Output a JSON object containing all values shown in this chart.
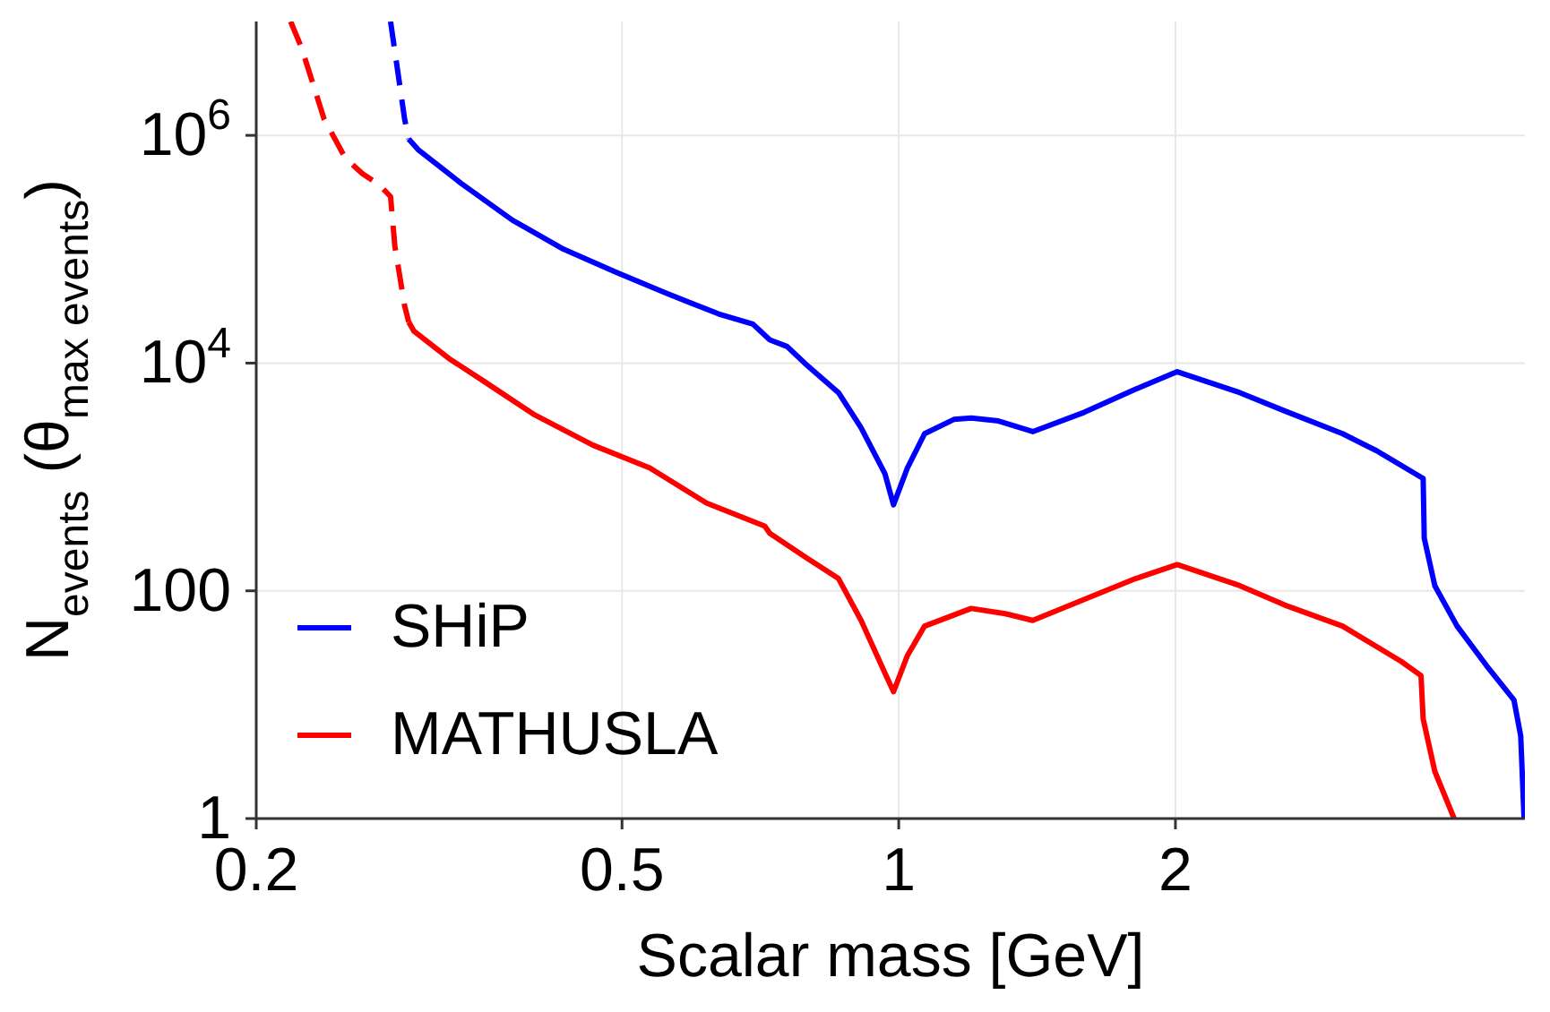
{
  "chart_data": {
    "type": "line",
    "xlabel": "Scalar mass [GeV]",
    "ylabel": "N$_{events}$ (θ$_{max events}$)",
    "log": "xy",
    "xlim": [
      0.2,
      4.8
    ],
    "xticks": [
      0.2,
      0.5,
      1,
      2
    ],
    "ylim": [
      1,
      10000000
    ],
    "yticks": [
      1,
      100,
      {
        "value": 10000,
        "label": "10$^{4}$"
      },
      {
        "value": 1000000,
        "label": "10$^{6}$"
      }
    ],
    "grid": true,
    "legend": "bottom left",
    "marker": "none",
    "series": [
      {
        "color": "#0000ff",
        "line_style": "dashed",
        "x": [
          0.28,
          0.29,
          0.293
        ],
        "values": [
          10000000,
          1400000,
          930000
        ]
      },
      {
        "name": "SHiP",
        "color": "#0000ff",
        "line_style": "solid",
        "x": [
          0.293,
          0.3,
          0.334,
          0.38,
          0.432,
          0.492,
          0.559,
          0.637,
          0.694,
          0.724,
          0.756,
          0.79,
          0.86,
          0.91,
          0.966,
          0.987,
          1.022,
          1.067,
          1.148,
          1.199,
          1.284,
          1.399,
          1.592,
          1.81,
          2.009,
          2.35,
          2.63,
          3.04,
          3.31,
          3.72,
          3.73,
          3.83,
          4.05,
          4.36,
          4.67,
          4.75,
          4.79
        ],
        "values": [
          930000,
          750000,
          380000,
          180000,
          100000,
          63000,
          41000,
          27000,
          22000,
          16000,
          14000,
          10000,
          5500,
          2700,
          1070,
          570,
          1200,
          2400,
          3200,
          3300,
          3100,
          2500,
          3700,
          5900,
          8400,
          5500,
          3800,
          2400,
          1700,
          970,
          290,
          111,
          49,
          22,
          11,
          5.3,
          1
        ]
      },
      {
        "color": "#ff0000",
        "line_style": "dashed",
        "x": [
          0.218,
          0.224,
          0.237,
          0.25,
          0.261,
          0.272,
          0.28,
          0.283,
          0.29,
          0.293
        ],
        "values": [
          10000000,
          5900000,
          1400000,
          630000,
          460000,
          370000,
          290000,
          107000,
          32000,
          23000
        ]
      },
      {
        "name": "MATHUSLA",
        "color": "#ff0000",
        "line_style": "solid",
        "x": [
          0.293,
          0.297,
          0.324,
          0.353,
          0.402,
          0.465,
          0.536,
          0.618,
          0.715,
          0.724,
          0.79,
          0.86,
          0.91,
          0.966,
          0.987,
          1.022,
          1.067,
          1.199,
          1.306,
          1.399,
          1.592,
          1.81,
          2.009,
          2.35,
          2.63,
          3.04,
          3.52,
          3.7,
          3.72,
          3.83,
          4.02
        ],
        "values": [
          23000,
          19000,
          11000,
          7000,
          3500,
          1900,
          1200,
          590,
          370,
          320,
          200,
          128,
          55,
          19,
          13,
          27,
          49,
          70,
          63,
          55,
          84,
          128,
          170,
          111,
          75,
          49,
          24,
          18,
          7.5,
          2.6,
          1
        ]
      }
    ]
  }
}
